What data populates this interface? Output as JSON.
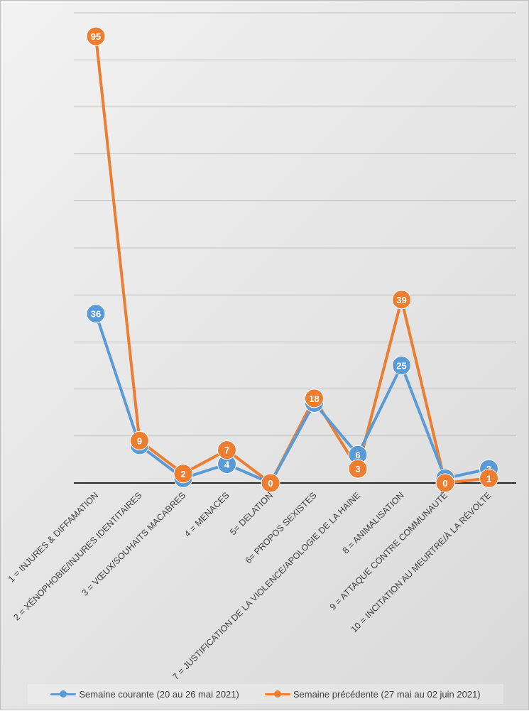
{
  "chart_data": {
    "type": "line",
    "categories": [
      "1 = INJURES & DIFFAMATION",
      "2 = XÉNOPHOBIE/INJURES IDENTITAIRES",
      "3 = VŒUX/SOUHAITS MACABRES",
      "4 = MENACES",
      "5= DELATION",
      "6= PROPOS SEXISTES",
      "7 = JUSTIFICATION DE LA VIOLENCE/APOLOGIE DE LA HAINE",
      "8 = ANIMALISATION",
      "9 = ATTAQUE CONTRE COMMUNAUTÉ",
      "10 = INCITATION AU MEURTRE/À LA RÉVOLTE"
    ],
    "series": [
      {
        "name": "Semaine courante (20 au 26 mai 2021)",
        "color": "#5b9bd5",
        "values": [
          36,
          8,
          1,
          4,
          0,
          17,
          6,
          25,
          1,
          3
        ]
      },
      {
        "name": "Semaine précédente (27 mai au 02 juin 2021)",
        "color": "#ed7d31",
        "values": [
          95,
          9,
          2,
          7,
          0,
          18,
          3,
          39,
          0,
          1
        ]
      }
    ],
    "ylim": [
      0,
      100
    ],
    "grid": true,
    "legend": "bottom"
  }
}
